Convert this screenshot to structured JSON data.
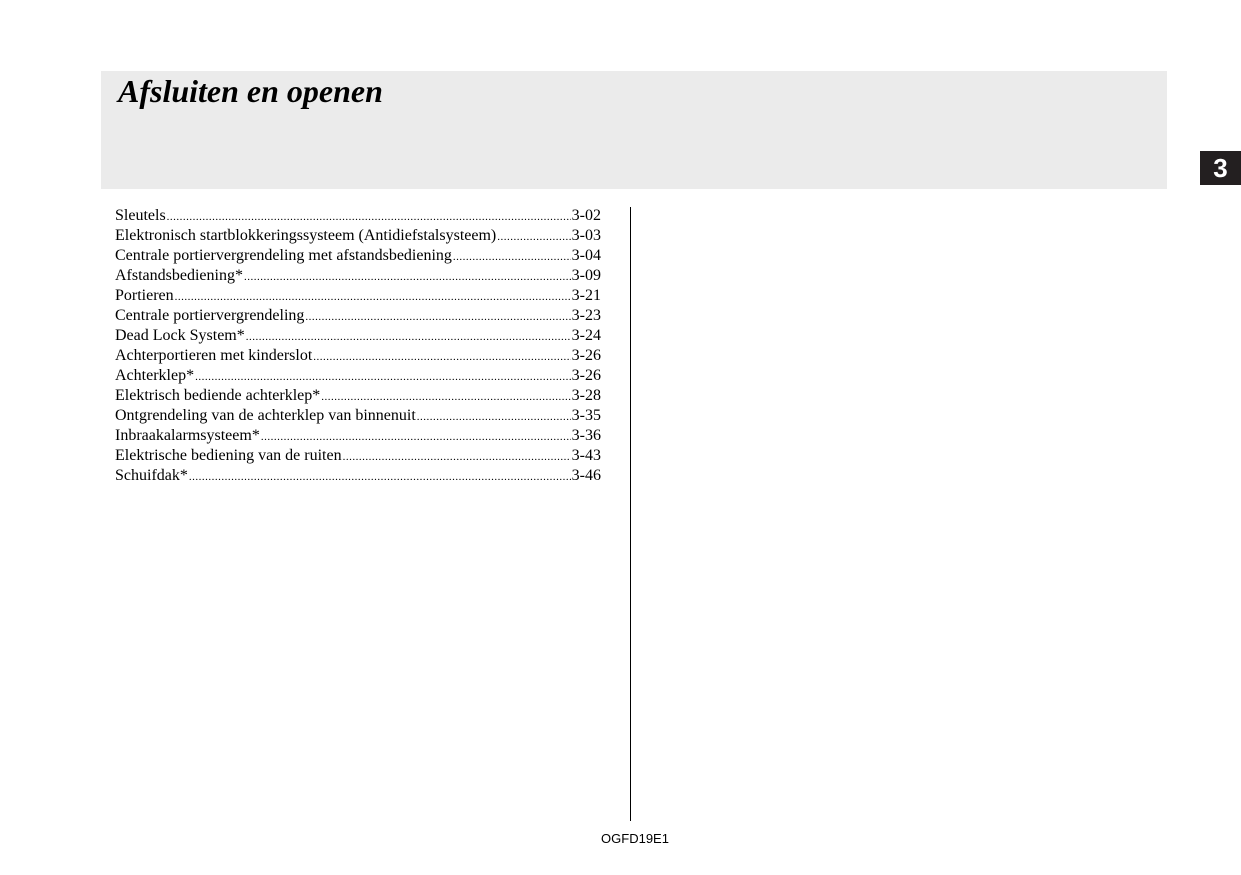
{
  "header": {
    "title": "Afsluiten en openen"
  },
  "chapter_tab": "3",
  "toc": [
    {
      "label": "Sleutels",
      "page": "3-02"
    },
    {
      "label": "Elektronisch startblokkeringssysteem (Antidiefstalsysteem)",
      "page": "3-03"
    },
    {
      "label": "Centrale portiervergrendeling met afstandsbediening",
      "page": "3-04"
    },
    {
      "label": "Afstandsbediening*",
      "page": "3-09"
    },
    {
      "label": "Portieren",
      "page": "3-21"
    },
    {
      "label": "Centrale portiervergrendeling",
      "page": "3-23"
    },
    {
      "label": "Dead Lock System*",
      "page": "3-24"
    },
    {
      "label": "Achterportieren met kinderslot",
      "page": "3-26"
    },
    {
      "label": "Achterklep*",
      "page": "3-26"
    },
    {
      "label": "Elektrisch bediende achterklep*",
      "page": "3-28"
    },
    {
      "label": "Ontgrendeling van de achterklep van binnenuit",
      "page": "3-35"
    },
    {
      "label": "Inbraakalarmsysteem*",
      "page": "3-36"
    },
    {
      "label": "Elektrische bediening van de ruiten",
      "page": "3-43"
    },
    {
      "label": "Schuifdak*",
      "page": "3-46"
    }
  ],
  "footer": {
    "code": "OGFD19E1"
  }
}
